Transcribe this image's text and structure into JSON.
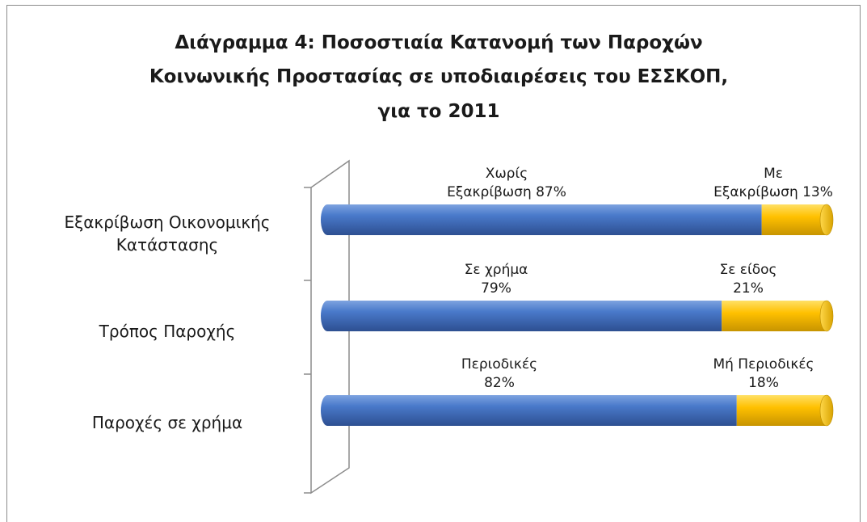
{
  "chart_data": {
    "type": "bar",
    "orientation": "horizontal",
    "stacked": "percent",
    "style": "3d-cylinder",
    "title_lines": [
      "Διάγραμμα 4: Ποσοστιαία Κατανομή των Παροχών",
      "Κοινωνικής Προστασίας σε υποδιαιρέσεις του ΕΣΣΚΟΠ,",
      "για το 2011"
    ],
    "categories": [
      {
        "label_lines": [
          "Εξακρίβωση Οικονομικής",
          "Κατάστασης"
        ]
      },
      {
        "label_lines": [
          "Τρόπος Παροχής"
        ]
      },
      {
        "label_lines": [
          "Παροχές σε χρήμα"
        ]
      }
    ],
    "series": [
      {
        "values": [
          87,
          79,
          82
        ],
        "color": "#4472C4"
      },
      {
        "values": [
          13,
          21,
          18
        ],
        "color": "#FFC000"
      }
    ],
    "data_labels": [
      [
        [
          "Χωρίς",
          "Εξακρίβωση 87%"
        ],
        [
          "Με",
          "Εξακρίβωση 13%"
        ]
      ],
      [
        [
          "Σε χρήμα",
          "79%"
        ],
        [
          "Σε είδος",
          "21%"
        ]
      ],
      [
        [
          "Περιοδικές",
          "82%"
        ],
        [
          "Μή Περιοδικές",
          "18%"
        ]
      ]
    ],
    "xlim": [
      0,
      100
    ],
    "grid": false,
    "legend": "none"
  }
}
